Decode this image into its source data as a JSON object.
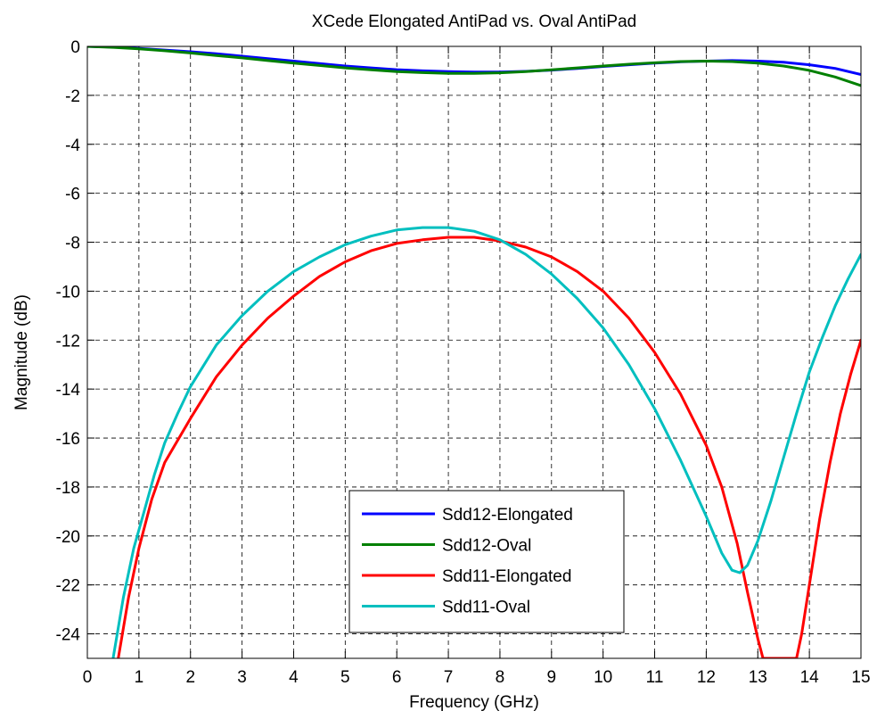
{
  "chart_data": {
    "type": "line",
    "title": "XCede Elongated AntiPad vs. Oval AntiPad",
    "xlabel": "Frequency (GHz)",
    "ylabel": "Magnitude (dB)",
    "xlim": [
      0,
      15
    ],
    "ylim": [
      -25,
      0
    ],
    "xticks": [
      0,
      1,
      2,
      3,
      4,
      5,
      6,
      7,
      8,
      9,
      10,
      11,
      12,
      13,
      14,
      15
    ],
    "yticks": [
      0,
      -2,
      -4,
      -6,
      -8,
      -10,
      -12,
      -14,
      -16,
      -18,
      -20,
      -22,
      -24
    ],
    "xtick_labels": [
      "0",
      "1",
      "2",
      "3",
      "4",
      "5",
      "6",
      "7",
      "8",
      "9",
      "10",
      "11",
      "12",
      "13",
      "14",
      "15"
    ],
    "ytick_labels": [
      "0",
      "-2",
      "-4",
      "-6",
      "-8",
      "-10",
      "-12",
      "-14",
      "-16",
      "-18",
      "-20",
      "-22",
      "-24"
    ],
    "grid": true,
    "legend_position": "bottom-center",
    "series": [
      {
        "name": "Sdd12-Elongated",
        "color": "#0000ff",
        "x": [
          0,
          0.5,
          1,
          1.5,
          2,
          2.5,
          3,
          3.5,
          4,
          4.5,
          5,
          5.5,
          6,
          6.5,
          7,
          7.5,
          8,
          8.5,
          9,
          9.5,
          10,
          10.5,
          11,
          11.5,
          12,
          12.5,
          13,
          13.5,
          14,
          14.5,
          15
        ],
        "y": [
          0,
          -0.03,
          -0.08,
          -0.15,
          -0.22,
          -0.3,
          -0.4,
          -0.5,
          -0.6,
          -0.7,
          -0.8,
          -0.88,
          -0.95,
          -1.0,
          -1.03,
          -1.05,
          -1.05,
          -1.02,
          -0.97,
          -0.9,
          -0.82,
          -0.75,
          -0.68,
          -0.63,
          -0.6,
          -0.58,
          -0.6,
          -0.65,
          -0.75,
          -0.9,
          -1.15
        ]
      },
      {
        "name": "Sdd12-Oval",
        "color": "#008000",
        "x": [
          0,
          0.5,
          1,
          1.5,
          2,
          2.5,
          3,
          3.5,
          4,
          4.5,
          5,
          5.5,
          6,
          6.5,
          7,
          7.5,
          8,
          8.5,
          9,
          9.5,
          10,
          10.5,
          11,
          11.5,
          12,
          12.5,
          13,
          13.5,
          14,
          14.5,
          15
        ],
        "y": [
          0,
          -0.04,
          -0.1,
          -0.18,
          -0.27,
          -0.37,
          -0.47,
          -0.58,
          -0.68,
          -0.78,
          -0.88,
          -0.96,
          -1.03,
          -1.07,
          -1.1,
          -1.1,
          -1.08,
          -1.03,
          -0.96,
          -0.88,
          -0.8,
          -0.73,
          -0.67,
          -0.62,
          -0.6,
          -0.62,
          -0.68,
          -0.8,
          -0.98,
          -1.25,
          -1.6
        ]
      },
      {
        "name": "Sdd11-Elongated",
        "color": "#ff0000",
        "x": [
          0.6,
          0.8,
          1,
          1.25,
          1.5,
          2,
          2.5,
          3,
          3.5,
          4,
          4.5,
          5,
          5.5,
          6,
          6.5,
          7,
          7.5,
          8,
          8.5,
          9,
          9.5,
          10,
          10.5,
          11,
          11.5,
          12,
          12.3,
          12.6,
          12.8,
          13,
          13.1,
          13.75,
          13.85,
          14,
          14.2,
          14.4,
          14.6,
          14.8,
          15
        ],
        "y": [
          -25,
          -22.5,
          -20.5,
          -18.5,
          -17,
          -15.2,
          -13.5,
          -12.2,
          -11.1,
          -10.2,
          -9.4,
          -8.8,
          -8.35,
          -8.05,
          -7.9,
          -7.8,
          -7.8,
          -7.95,
          -8.2,
          -8.6,
          -9.2,
          -10.0,
          -11.1,
          -12.5,
          -14.2,
          -16.3,
          -18.0,
          -20.3,
          -22.3,
          -24.2,
          -25,
          -25,
          -24.0,
          -22.0,
          -19.3,
          -17.0,
          -15.0,
          -13.4,
          -12.0
        ]
      },
      {
        "name": "Sdd11-Oval",
        "color": "#00bfbf",
        "x": [
          0.5,
          0.7,
          0.9,
          1.1,
          1.3,
          1.5,
          1.75,
          2,
          2.5,
          3,
          3.5,
          4,
          4.5,
          5,
          5.5,
          6,
          6.5,
          7,
          7.5,
          8,
          8.5,
          9,
          9.5,
          10,
          10.5,
          11,
          11.5,
          12,
          12.3,
          12.5,
          12.65,
          12.8,
          13,
          13.25,
          13.5,
          13.75,
          14,
          14.25,
          14.5,
          14.75,
          15
        ],
        "y": [
          -25,
          -22.5,
          -20.5,
          -19.0,
          -17.5,
          -16.2,
          -15.0,
          -13.9,
          -12.2,
          -11.0,
          -10.0,
          -9.2,
          -8.6,
          -8.1,
          -7.75,
          -7.5,
          -7.4,
          -7.4,
          -7.55,
          -7.9,
          -8.5,
          -9.3,
          -10.3,
          -11.5,
          -13.0,
          -14.8,
          -16.9,
          -19.2,
          -20.7,
          -21.4,
          -21.5,
          -21.2,
          -20.2,
          -18.6,
          -16.8,
          -15.0,
          -13.3,
          -11.9,
          -10.6,
          -9.5,
          -8.5
        ]
      }
    ]
  }
}
